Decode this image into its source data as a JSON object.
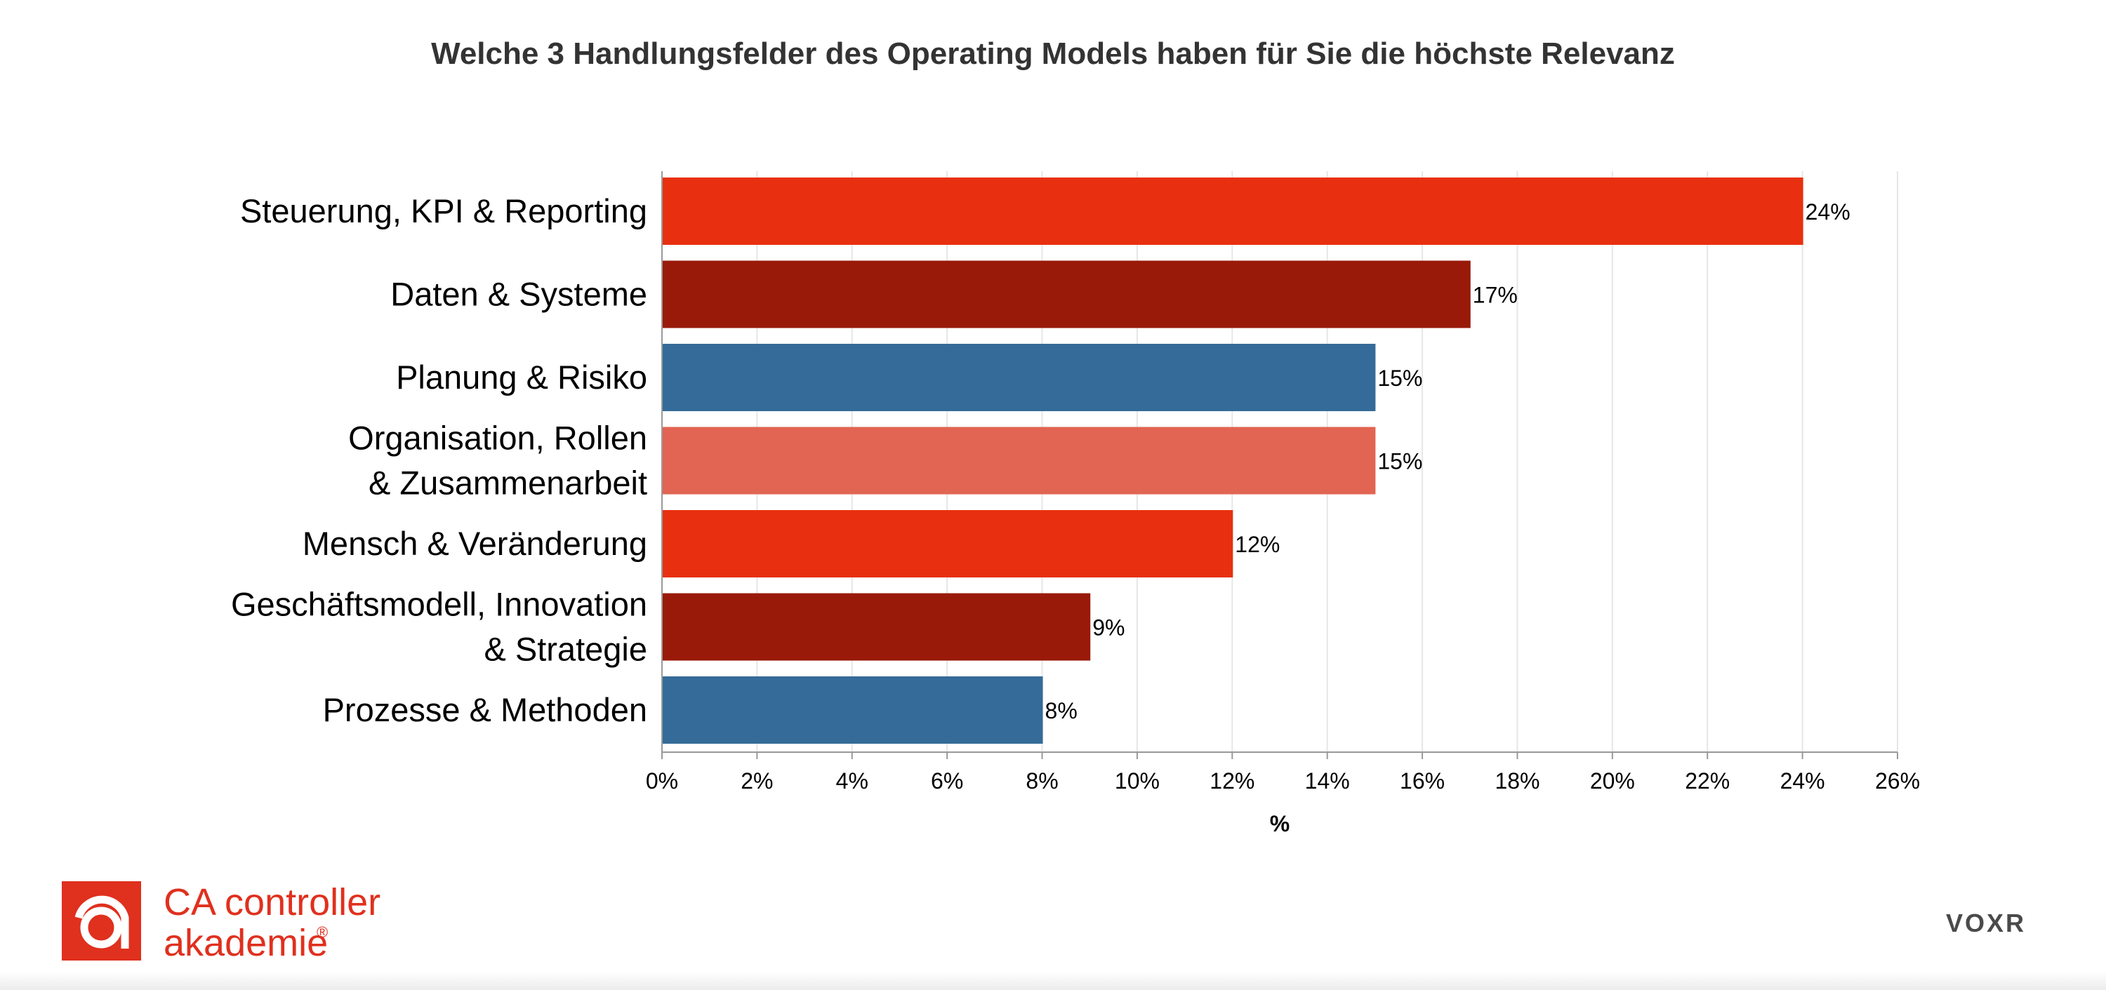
{
  "chart_data": {
    "type": "bar",
    "orientation": "horizontal",
    "title": "Welche 3 Handlungsfelder des Operating Models haben für Sie die höchste Relevanz",
    "xlabel": "%",
    "ylabel": "",
    "xlim": [
      0,
      26
    ],
    "xticks": [
      "0%",
      "2%",
      "4%",
      "6%",
      "8%",
      "10%",
      "12%",
      "14%",
      "16%",
      "18%",
      "20%",
      "22%",
      "24%",
      "26%"
    ],
    "grid": "vertical",
    "categories": [
      [
        "Steuerung, KPI & Reporting"
      ],
      [
        "Daten & Systeme"
      ],
      [
        "Planung & Risiko"
      ],
      [
        "Organisation, Rollen",
        "& Zusammenarbeit"
      ],
      [
        "Mensch & Veränderung"
      ],
      [
        "Geschäftsmodell, Innovation",
        "& Strategie"
      ],
      [
        "Prozesse & Methoden"
      ]
    ],
    "values": [
      24,
      17,
      15,
      15,
      12,
      9,
      8
    ],
    "data_labels": [
      "24%",
      "17%",
      "15%",
      "15%",
      "12%",
      "9%",
      "8%"
    ],
    "colors": [
      "#e83010",
      "#991a09",
      "#346b98",
      "#e26452",
      "#e83010",
      "#991a09",
      "#346b98"
    ]
  },
  "branding": {
    "logo_left": {
      "line1": "CA controller",
      "line2": "akademie",
      "mark": "®",
      "color": "#e0301e",
      "icon": "ca-controller-akademie-logo"
    },
    "logo_right": {
      "text": "VOXR",
      "icon": "voxr-logo"
    }
  }
}
